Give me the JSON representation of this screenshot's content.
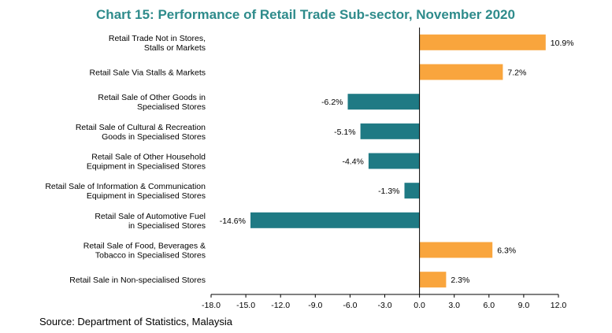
{
  "chart_data": {
    "type": "bar",
    "orientation": "horizontal",
    "title": "Chart 15: Performance of Retail Trade Sub-sector, November 2020",
    "categories": [
      [
        "Retail Trade Not in Stores,",
        "Stalls or Markets"
      ],
      [
        "Retail Sale Via Stalls & Markets"
      ],
      [
        "Retail Sale of Other Goods in",
        "Specialised Stores"
      ],
      [
        "Retail Sale of Cultural & Recreation",
        "Goods in Specialised Stores"
      ],
      [
        "Retail Sale of Other Household",
        "Equipment in Specialised Stores"
      ],
      [
        "Retail Sale of Information & Communication",
        "Equipment in Specialised Stores"
      ],
      [
        "Retail Sale of Automotive Fuel",
        "in Specialised Stores"
      ],
      [
        "Retail Sale of Food, Beverages &",
        "Tobacco in Specialised Stores"
      ],
      [
        "Retail Sale in Non-specialised Stores"
      ]
    ],
    "values": [
      10.9,
      7.2,
      -6.2,
      -5.1,
      -4.4,
      -1.3,
      -14.6,
      6.3,
      2.3
    ],
    "value_labels": [
      "10.9%",
      "7.2%",
      "-6.2%",
      "-5.1%",
      "-4.4%",
      "-1.3%",
      "-14.6%",
      "6.3%",
      "2.3%"
    ],
    "xlim": [
      -18,
      12
    ],
    "xticks": [
      -18,
      -15,
      -12,
      -9,
      -6,
      -3,
      0,
      3,
      6,
      9,
      12
    ],
    "xtick_labels": [
      "-18.0",
      "-15.0",
      "-12.0",
      "-9.0",
      "-6.0",
      "-3.0",
      "0.0",
      "3.0",
      "6.0",
      "9.0",
      "12.0"
    ],
    "grid": false,
    "legend": "none",
    "colors": {
      "positive": "#F9A53D",
      "negative": "#1F7A84",
      "title": "#2E8B8B",
      "axis": "#000000"
    }
  },
  "source": "Source: Department of Statistics, Malaysia"
}
